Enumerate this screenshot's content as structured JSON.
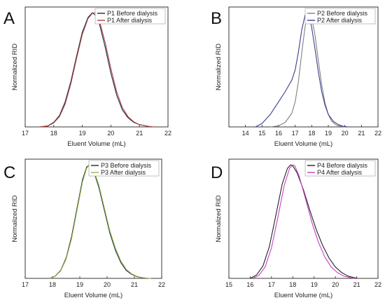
{
  "chart_data": [
    {
      "panel": "A",
      "type": "line",
      "xlabel": "Eluent Volume (mL)",
      "ylabel": "Normalized RID",
      "xlim": [
        17,
        22
      ],
      "xticks": [
        "17",
        "18",
        "19",
        "20",
        "21",
        "22"
      ],
      "ylim": [
        0,
        1.05
      ],
      "legend_position": "top-right",
      "series": [
        {
          "name": "P1 Before dialysis",
          "color": "#1c2a44",
          "x": [
            17.5,
            17.8,
            18.0,
            18.2,
            18.4,
            18.6,
            18.8,
            19.0,
            19.2,
            19.35,
            19.45,
            19.6,
            19.8,
            20.0,
            20.2,
            20.4,
            20.6,
            20.8,
            21.0,
            21.3,
            21.5
          ],
          "y": [
            0.0,
            0.01,
            0.04,
            0.1,
            0.22,
            0.4,
            0.62,
            0.83,
            0.96,
            1.0,
            0.98,
            0.9,
            0.7,
            0.47,
            0.28,
            0.15,
            0.08,
            0.04,
            0.02,
            0.005,
            0.0
          ]
        },
        {
          "name": "P1 After dialysis",
          "color": "#b0413e",
          "x": [
            17.5,
            17.8,
            18.0,
            18.2,
            18.4,
            18.6,
            18.8,
            19.0,
            19.2,
            19.35,
            19.45,
            19.6,
            19.8,
            20.0,
            20.2,
            20.4,
            20.6,
            20.8,
            21.0,
            21.3,
            21.5
          ],
          "y": [
            0.0,
            0.008,
            0.035,
            0.09,
            0.2,
            0.38,
            0.6,
            0.81,
            0.95,
            0.995,
            1.0,
            0.93,
            0.74,
            0.51,
            0.31,
            0.17,
            0.09,
            0.045,
            0.02,
            0.005,
            0.0
          ]
        }
      ]
    },
    {
      "panel": "B",
      "type": "line",
      "xlabel": "Eluent Volume (mL)",
      "ylabel": "Normalized RID",
      "xlim": [
        13,
        22
      ],
      "xticks": [
        "14",
        "15",
        "16",
        "17",
        "18",
        "19",
        "20",
        "21",
        "22"
      ],
      "ylim": [
        0,
        1.05
      ],
      "legend_position": "top-right",
      "series": [
        {
          "name": "P2 Before dialysis",
          "color": "#808080",
          "x": [
            15.5,
            16.0,
            16.4,
            16.8,
            17.0,
            17.2,
            17.4,
            17.6,
            17.75,
            17.85,
            18.0,
            18.2,
            18.4,
            18.6,
            18.8,
            19.0,
            19.2,
            19.5,
            19.8,
            20.0
          ],
          "y": [
            0.0,
            0.01,
            0.04,
            0.12,
            0.22,
            0.4,
            0.65,
            0.88,
            0.99,
            1.0,
            0.96,
            0.8,
            0.58,
            0.37,
            0.21,
            0.11,
            0.05,
            0.015,
            0.003,
            0.0
          ]
        },
        {
          "name": "P2 After dialysis",
          "color": "#3a3f8f",
          "x": [
            14.6,
            15.0,
            15.5,
            16.0,
            16.4,
            16.8,
            17.0,
            17.2,
            17.4,
            17.6,
            17.7,
            17.85,
            18.0,
            18.2,
            18.4,
            18.6,
            18.8,
            19.0,
            19.3,
            19.6,
            19.9,
            20.2
          ],
          "y": [
            0.0,
            0.03,
            0.11,
            0.22,
            0.31,
            0.41,
            0.5,
            0.66,
            0.85,
            0.98,
            1.0,
            0.97,
            0.87,
            0.68,
            0.48,
            0.31,
            0.19,
            0.11,
            0.05,
            0.02,
            0.005,
            0.0
          ]
        }
      ]
    },
    {
      "panel": "C",
      "type": "line",
      "xlabel": "Eluent Volume (mL)",
      "ylabel": "Normalized RID",
      "xlim": [
        17,
        22
      ],
      "xticks": [
        "17",
        "18",
        "19",
        "20",
        "21",
        "22"
      ],
      "ylim": [
        0,
        1.05
      ],
      "legend_position": "top-right",
      "series": [
        {
          "name": "P3 Before dialysis",
          "color": "#1c2a44",
          "x": [
            17.9,
            18.1,
            18.3,
            18.5,
            18.7,
            18.9,
            19.1,
            19.25,
            19.35,
            19.5,
            19.7,
            19.9,
            20.1,
            20.3,
            20.5,
            20.7,
            20.9,
            21.1,
            21.3,
            21.5
          ],
          "y": [
            0.0,
            0.02,
            0.07,
            0.18,
            0.37,
            0.62,
            0.87,
            0.98,
            1.0,
            0.95,
            0.8,
            0.6,
            0.4,
            0.25,
            0.14,
            0.07,
            0.035,
            0.015,
            0.005,
            0.0
          ]
        },
        {
          "name": "P3 After dialysis",
          "color": "#9ab83c",
          "x": [
            17.9,
            18.1,
            18.3,
            18.5,
            18.7,
            18.9,
            19.1,
            19.25,
            19.35,
            19.5,
            19.7,
            19.9,
            20.1,
            20.3,
            20.5,
            20.7,
            20.9,
            21.1,
            21.3,
            21.6
          ],
          "y": [
            0.0,
            0.018,
            0.065,
            0.17,
            0.35,
            0.6,
            0.85,
            0.97,
            1.0,
            0.96,
            0.82,
            0.62,
            0.42,
            0.27,
            0.155,
            0.08,
            0.04,
            0.018,
            0.006,
            0.0
          ]
        }
      ]
    },
    {
      "panel": "D",
      "type": "line",
      "xlabel": "Eluent Volume (mL)",
      "ylabel": "Normalized RID",
      "xlim": [
        15,
        22
      ],
      "xticks": [
        "15",
        "16",
        "17",
        "18",
        "19",
        "20",
        "21",
        "22"
      ],
      "ylim": [
        0,
        1.05
      ],
      "legend_position": "top-right",
      "series": [
        {
          "name": "P4 Before dialysis",
          "color": "#222222",
          "x": [
            16.0,
            16.3,
            16.6,
            16.9,
            17.2,
            17.5,
            17.75,
            17.9,
            18.0,
            18.2,
            18.5,
            18.8,
            19.1,
            19.4,
            19.7,
            20.0,
            20.3,
            20.6,
            20.9,
            21.0
          ],
          "y": [
            0.0,
            0.03,
            0.11,
            0.28,
            0.55,
            0.83,
            0.97,
            1.0,
            0.99,
            0.93,
            0.78,
            0.6,
            0.43,
            0.29,
            0.18,
            0.1,
            0.05,
            0.02,
            0.005,
            0.0
          ]
        },
        {
          "name": "P4 After dialysis",
          "color": "#c63ec6",
          "x": [
            16.1,
            16.4,
            16.7,
            17.0,
            17.3,
            17.6,
            17.85,
            18.0,
            18.1,
            18.3,
            18.6,
            18.9,
            19.2,
            19.5,
            19.8,
            20.1,
            20.4,
            20.7,
            20.9
          ],
          "y": [
            0.0,
            0.025,
            0.1,
            0.27,
            0.54,
            0.82,
            0.97,
            1.0,
            0.99,
            0.9,
            0.7,
            0.49,
            0.32,
            0.19,
            0.1,
            0.05,
            0.02,
            0.006,
            0.0
          ]
        }
      ]
    }
  ]
}
